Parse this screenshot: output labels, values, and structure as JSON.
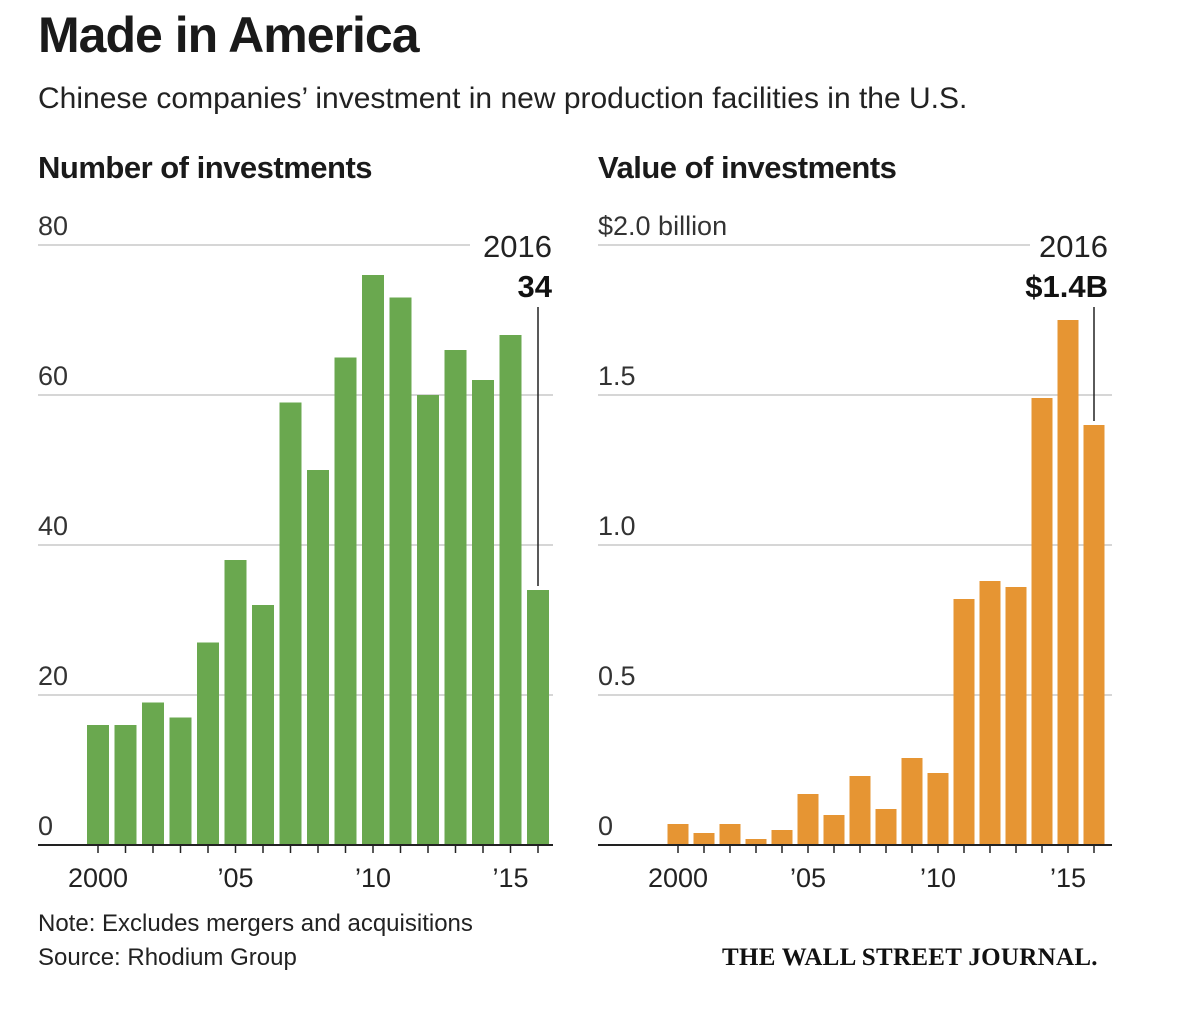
{
  "header": {
    "title": "Made in America",
    "subtitle": "Chinese companies’ investment in new production facilities in the U.S."
  },
  "footer": {
    "note": "Note: Excludes mergers and acquisitions",
    "source": "Source: Rhodium Group",
    "publisher": "THE WALL STREET JOURNAL."
  },
  "chart_data": [
    {
      "type": "bar",
      "title": "Number of investments",
      "color": "#6aa84f",
      "x": [
        2000,
        2001,
        2002,
        2003,
        2004,
        2005,
        2006,
        2007,
        2008,
        2009,
        2010,
        2011,
        2012,
        2013,
        2014,
        2015,
        2016
      ],
      "values": [
        16,
        16,
        19,
        17,
        27,
        38,
        32,
        59,
        50,
        65,
        76,
        73,
        60,
        66,
        62,
        68,
        34
      ],
      "ylim": [
        0,
        80
      ],
      "yticks": [
        0,
        20,
        40,
        60,
        80
      ],
      "ytick_labels": [
        "0",
        "20",
        "40",
        "60",
        "80"
      ],
      "xtick_years": [
        2000,
        2005,
        2010,
        2015
      ],
      "xtick_labels": [
        "2000",
        "’05",
        "’10",
        "’15"
      ],
      "callout": {
        "year_label": "2016",
        "value_label": "34",
        "index": 16
      }
    },
    {
      "type": "bar",
      "title": "Value of investments",
      "color": "#e69533",
      "x": [
        2000,
        2001,
        2002,
        2003,
        2004,
        2005,
        2006,
        2007,
        2008,
        2009,
        2010,
        2011,
        2012,
        2013,
        2014,
        2015,
        2016
      ],
      "values": [
        0.07,
        0.04,
        0.07,
        0.02,
        0.05,
        0.17,
        0.1,
        0.23,
        0.12,
        0.29,
        0.24,
        0.82,
        0.88,
        0.86,
        1.49,
        1.75,
        1.4
      ],
      "ylim": [
        0,
        2.0
      ],
      "yticks": [
        0,
        0.5,
        1.0,
        1.5,
        2.0
      ],
      "ytick_labels": [
        "0",
        "0.5",
        "1.0",
        "1.5",
        "$2.0 billion"
      ],
      "xtick_years": [
        2000,
        2005,
        2010,
        2015
      ],
      "xtick_labels": [
        "2000",
        "’05",
        "’10",
        "’15"
      ],
      "callout": {
        "year_label": "2016",
        "value_label": "$1.4B",
        "index": 16
      }
    }
  ]
}
